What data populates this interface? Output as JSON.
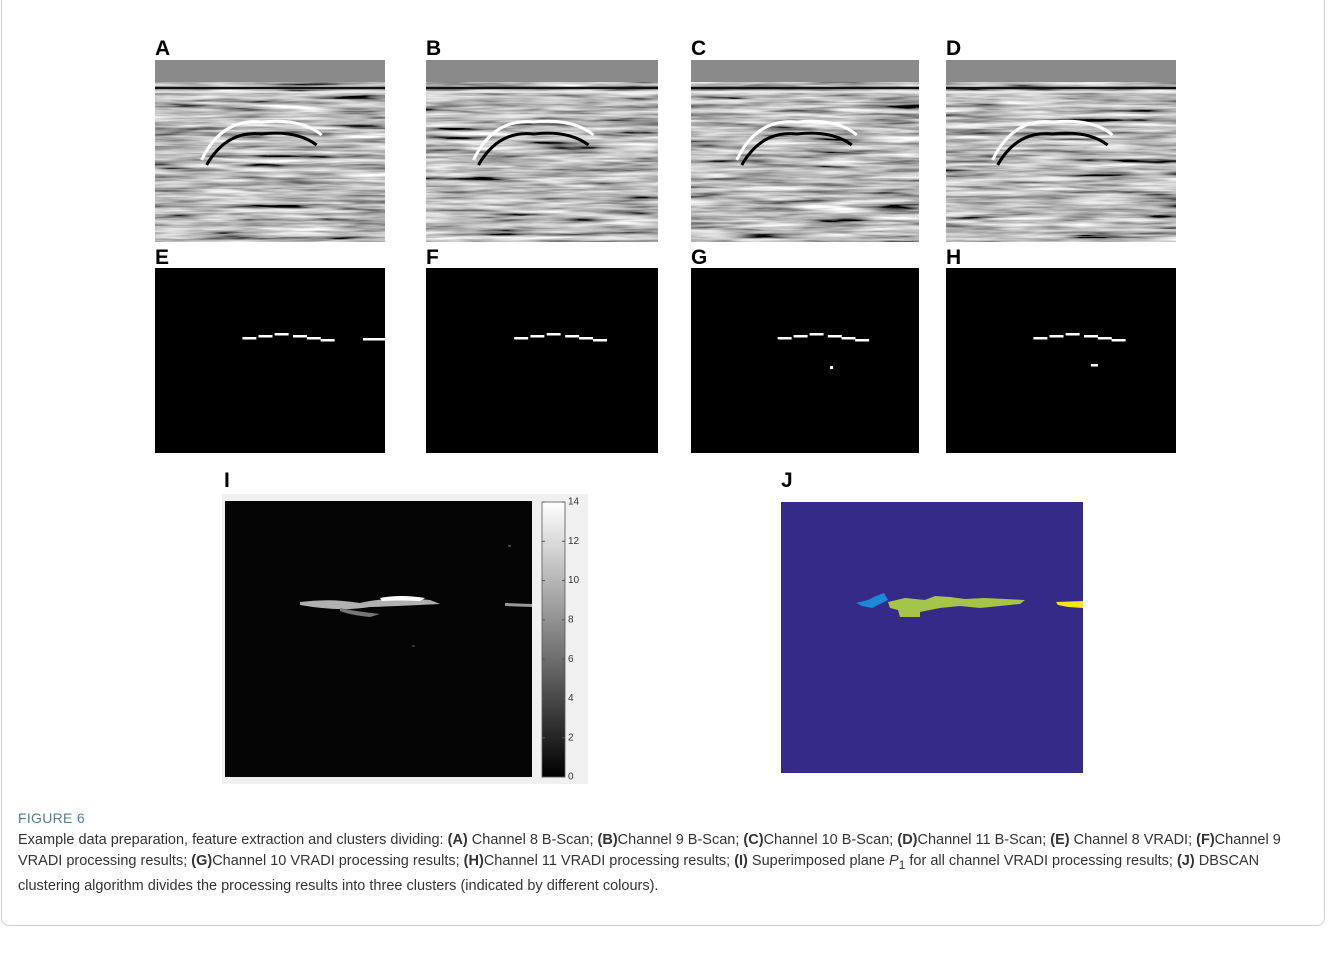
{
  "figure": {
    "panels": [
      {
        "letter": "A"
      },
      {
        "letter": "B"
      },
      {
        "letter": "C"
      },
      {
        "letter": "D"
      },
      {
        "letter": "E"
      },
      {
        "letter": "F"
      },
      {
        "letter": "G"
      },
      {
        "letter": "H"
      },
      {
        "letter": "I"
      },
      {
        "letter": "J"
      }
    ],
    "colorbar": {
      "ticks": [
        0,
        2,
        4,
        6,
        8,
        10,
        12,
        14
      ]
    },
    "label": "FIGURE 6",
    "caption": [
      {
        "style": "normal",
        "text": "Example data preparation, feature extraction and clusters dividing: "
      },
      {
        "style": "bold",
        "text": "(A)"
      },
      {
        "style": "normal",
        "text": " Channel 8 B-Scan; "
      },
      {
        "style": "bold",
        "text": "(B)"
      },
      {
        "style": "normal",
        "text": "Channel 9 B-Scan; "
      },
      {
        "style": "bold",
        "text": "(C)"
      },
      {
        "style": "normal",
        "text": "Channel 10 B-Scan; "
      },
      {
        "style": "bold",
        "text": "(D)"
      },
      {
        "style": "normal",
        "text": "Channel 11 B-Scan; "
      },
      {
        "style": "bold",
        "text": "(E)"
      },
      {
        "style": "normal",
        "text": " Channel 8 VRADI; "
      },
      {
        "style": "bold",
        "text": "(F)"
      },
      {
        "style": "normal",
        "text": "Channel 9 VRADI processing results; "
      },
      {
        "style": "bold",
        "text": "(G)"
      },
      {
        "style": "normal",
        "text": "Channel 10 VRADI processing results; "
      },
      {
        "style": "bold",
        "text": "(H)"
      },
      {
        "style": "normal",
        "text": "Channel 11 VRADI processing results; "
      },
      {
        "style": "bold",
        "text": "(I)"
      },
      {
        "style": "normal",
        "text": " Superimposed plane "
      },
      {
        "style": "italic",
        "text": "P"
      },
      {
        "style": "sub",
        "text": "1"
      },
      {
        "style": "normal",
        "text": " for all channel VRADI processing results; "
      },
      {
        "style": "bold",
        "text": "(J)"
      },
      {
        "style": "normal",
        "text": " DBSCAN clustering algorithm divides the processing results into three clusters (indicated by different colours)."
      }
    ]
  }
}
